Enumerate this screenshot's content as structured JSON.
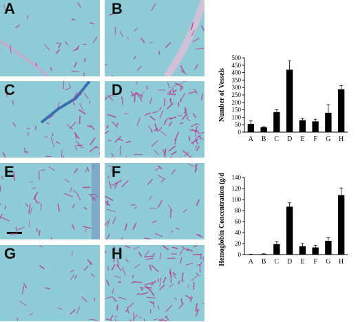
{
  "panels": [
    {
      "label": "A",
      "variant": "sparse-membrane",
      "seed": 11
    },
    {
      "label": "B",
      "variant": "sparse-membrane",
      "seed": 23
    },
    {
      "label": "C",
      "variant": "medium-stain",
      "seed": 37
    },
    {
      "label": "D",
      "variant": "dense",
      "seed": 41
    },
    {
      "label": "E",
      "variant": "medium-scalebar",
      "seed": 53
    },
    {
      "label": "F",
      "variant": "medium",
      "seed": 67
    },
    {
      "label": "G",
      "variant": "sparse",
      "seed": 79
    },
    {
      "label": "H",
      "variant": "dense",
      "seed": 83
    }
  ],
  "colors": {
    "tissue": "#8fcbd6",
    "vessel": "#b33b8f",
    "stain": "#2a5fa8",
    "bar": "#000000"
  },
  "chart_data": [
    {
      "type": "bar",
      "categories": [
        "A",
        "B",
        "C",
        "D",
        "E",
        "F",
        "G",
        "H"
      ],
      "values": [
        55,
        32,
        135,
        420,
        80,
        72,
        130,
        288
      ],
      "errors": [
        20,
        5,
        15,
        60,
        12,
        15,
        55,
        25
      ],
      "ylabel": "Number of Vessels",
      "ylim": [
        0,
        500
      ],
      "yticks": [
        "0",
        "50",
        "100",
        "150",
        "200",
        "250",
        "300",
        "350",
        "400",
        "450",
        "500"
      ],
      "tickvals": [
        0,
        50,
        100,
        150,
        200,
        250,
        300,
        350,
        400,
        450,
        500
      ]
    },
    {
      "type": "bar",
      "categories": [
        "A",
        "B",
        "C",
        "D",
        "E",
        "F",
        "G",
        "H"
      ],
      "values": [
        0.5,
        1,
        19,
        87,
        15,
        13,
        25,
        108
      ],
      "errors": [
        0.3,
        0.5,
        4,
        7,
        5,
        4,
        6,
        13
      ],
      "ylabel": "Hemoglobin Concentration (g/dL)",
      "ylim": [
        0,
        140
      ],
      "yticks": [
        "0",
        "20",
        "40",
        "60",
        "80",
        "100",
        "120",
        "140"
      ],
      "tickvals": [
        0,
        20,
        40,
        60,
        80,
        100,
        120,
        140
      ]
    }
  ]
}
